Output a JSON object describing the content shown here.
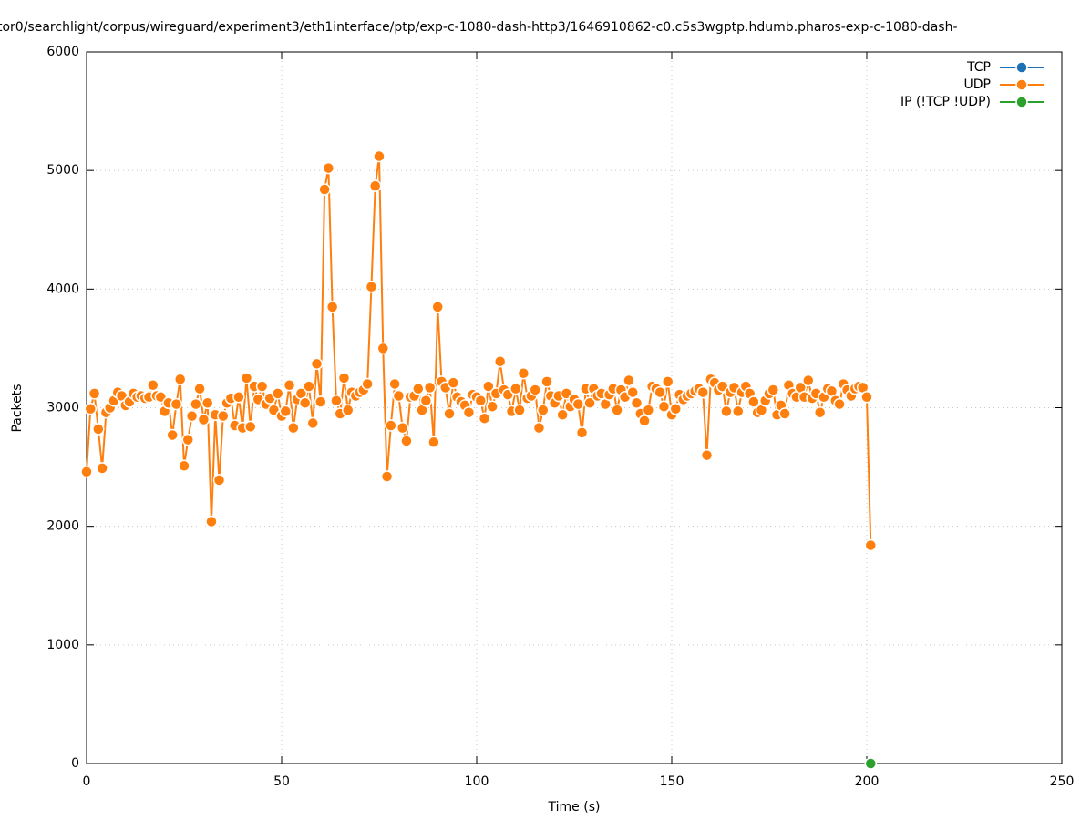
{
  "chart_data": {
    "type": "line",
    "title": "tor0/searchlight/corpus/wireguard/experiment3/eth1interface/ptp/exp-c-1080-dash-http3/1646910862-c0.c5s3wgptp.hdumb.pharos-exp-c-1080-dash-",
    "x_label": "Time (s)",
    "y_label": "Packets",
    "xlim": [
      0,
      250
    ],
    "xticks": [
      0,
      50,
      100,
      150,
      200,
      250
    ],
    "ylim": [
      0,
      6000
    ],
    "yticks": [
      0,
      1000,
      2000,
      3000,
      4000,
      5000,
      6000
    ],
    "grid": true,
    "legend": "top-right",
    "series": [
      {
        "name": "TCP",
        "color": "#1f6fb5",
        "x": [],
        "values": []
      },
      {
        "name": "UDP",
        "color": "#ff7f0e",
        "x": [
          0,
          1,
          2,
          3,
          4,
          5,
          6,
          7,
          8,
          9,
          10,
          11,
          12,
          13,
          14,
          15,
          16,
          17,
          18,
          19,
          20,
          21,
          22,
          23,
          24,
          25,
          26,
          27,
          28,
          29,
          30,
          31,
          32,
          33,
          34,
          35,
          36,
          37,
          38,
          39,
          40,
          41,
          42,
          43,
          44,
          45,
          46,
          47,
          48,
          49,
          50,
          51,
          52,
          53,
          54,
          55,
          56,
          57,
          58,
          59,
          60,
          61,
          62,
          63,
          64,
          65,
          66,
          67,
          68,
          69,
          70,
          71,
          72,
          73,
          74,
          75,
          76,
          77,
          78,
          79,
          80,
          81,
          82,
          83,
          84,
          85,
          86,
          87,
          88,
          89,
          90,
          91,
          92,
          93,
          94,
          95,
          96,
          97,
          98,
          99,
          100,
          101,
          102,
          103,
          104,
          105,
          106,
          107,
          108,
          109,
          110,
          111,
          112,
          113,
          114,
          115,
          116,
          117,
          118,
          119,
          120,
          121,
          122,
          123,
          124,
          125,
          126,
          127,
          128,
          129,
          130,
          131,
          132,
          133,
          134,
          135,
          136,
          137,
          138,
          139,
          140,
          141,
          142,
          143,
          144,
          145,
          146,
          147,
          148,
          149,
          150,
          151,
          152,
          153,
          154,
          155,
          156,
          157,
          158,
          159,
          160,
          161,
          162,
          163,
          164,
          165,
          166,
          167,
          168,
          169,
          170,
          171,
          172,
          173,
          174,
          175,
          176,
          177,
          178,
          179,
          180,
          181,
          182,
          183,
          184,
          185,
          186,
          187,
          188,
          189,
          190,
          191,
          192,
          193,
          194,
          195,
          196,
          197,
          198,
          199,
          200,
          201
        ],
        "values": [
          2460,
          2990,
          3120,
          2820,
          2490,
          2960,
          3000,
          3060,
          3130,
          3100,
          3020,
          3050,
          3120,
          3090,
          3100,
          3080,
          3090,
          3190,
          3100,
          3090,
          2970,
          3040,
          2770,
          3030,
          3240,
          2510,
          2730,
          2930,
          3030,
          3160,
          2900,
          3040,
          2040,
          2940,
          2390,
          2930,
          3040,
          3080,
          2850,
          3090,
          2830,
          3250,
          2840,
          3180,
          3070,
          3180,
          3030,
          3080,
          2980,
          3120,
          2930,
          2970,
          3190,
          2830,
          3070,
          3120,
          3040,
          3180,
          2870,
          3370,
          3050,
          4840,
          5020,
          3850,
          3060,
          2950,
          3250,
          2980,
          3130,
          3100,
          3130,
          3150,
          3200,
          4020,
          4870,
          5120,
          3500,
          2420,
          2850,
          3200,
          3100,
          2830,
          2720,
          3090,
          3100,
          3160,
          2980,
          3060,
          3170,
          2710,
          3850,
          3220,
          3170,
          2950,
          3210,
          3090,
          3050,
          3020,
          2960,
          3110,
          3090,
          3060,
          2910,
          3180,
          3010,
          3120,
          3390,
          3150,
          3110,
          2970,
          3160,
          2980,
          3290,
          3080,
          3100,
          3150,
          2830,
          2980,
          3220,
          3100,
          3040,
          3100,
          2940,
          3120,
          3010,
          3070,
          3030,
          2790,
          3160,
          3040,
          3160,
          3100,
          3120,
          3030,
          3110,
          3160,
          2980,
          3150,
          3090,
          3230,
          3130,
          3040,
          2950,
          2890,
          2980,
          3180,
          3160,
          3130,
          3010,
          3220,
          2940,
          2990,
          3110,
          3070,
          3100,
          3120,
          3140,
          3160,
          3130,
          2600,
          3240,
          3210,
          3150,
          3180,
          2970,
          3130,
          3170,
          2970,
          3130,
          3180,
          3120,
          3050,
          2960,
          2980,
          3060,
          3120,
          3150,
          2940,
          3020,
          2950,
          3190,
          3120,
          3090,
          3170,
          3090,
          3230,
          3080,
          3120,
          2960,
          3090,
          3160,
          3140,
          3060,
          3030,
          3200,
          3150,
          3100,
          3160,
          3180,
          3170,
          3090,
          1840
        ]
      },
      {
        "name": "IP (!TCP  !UDP)",
        "color": "#2ca02c",
        "x": [
          201
        ],
        "values": [
          0
        ]
      }
    ]
  }
}
